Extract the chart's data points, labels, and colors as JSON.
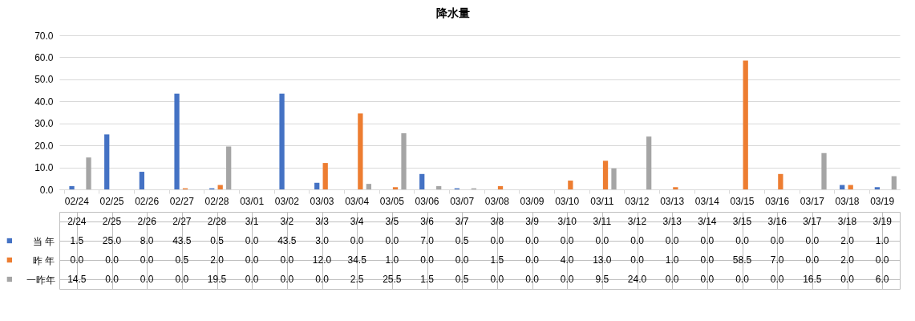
{
  "chart_data": {
    "type": "bar",
    "title": "降水量",
    "categories": [
      "02/24",
      "02/25",
      "02/26",
      "02/27",
      "02/28",
      "03/01",
      "03/02",
      "03/03",
      "03/04",
      "03/05",
      "03/06",
      "03/07",
      "03/08",
      "03/09",
      "03/10",
      "03/11",
      "03/12",
      "03/13",
      "03/14",
      "03/15",
      "03/16",
      "03/17",
      "03/18",
      "03/19"
    ],
    "series": [
      {
        "name": "当 年",
        "color": "#4472c4",
        "values": [
          1.5,
          25.0,
          8.0,
          43.5,
          0.5,
          0.0,
          43.5,
          3.0,
          0.0,
          0.0,
          7.0,
          0.5,
          0.0,
          0.0,
          0.0,
          0.0,
          0.0,
          0.0,
          0.0,
          0.0,
          0.0,
          0.0,
          2.0,
          1.0
        ],
        "value_labels": [
          "1.5",
          "25.0",
          "8.0",
          "43.5",
          "0.5",
          "0.0",
          "43.5",
          "3.0",
          "0.0",
          "0.0",
          "7.0",
          "0.5",
          "0.0",
          "0.0",
          "0.0",
          "0.0",
          "0.0",
          "0.0",
          "0.0",
          "0.0",
          "0.0",
          "0.0",
          "2.0",
          "1.0"
        ]
      },
      {
        "name": "昨 年",
        "color": "#ed7d31",
        "values": [
          0.0,
          0.0,
          0.0,
          0.5,
          2.0,
          0.0,
          0.0,
          12.0,
          34.5,
          1.0,
          0.0,
          0.0,
          1.5,
          0.0,
          4.0,
          13.0,
          0.0,
          1.0,
          0.0,
          58.5,
          7.0,
          0.0,
          2.0,
          0.0
        ],
        "value_labels": [
          "0.0",
          "0.0",
          "0.0",
          "0.5",
          "2.0",
          "0.0",
          "0.0",
          "12.0",
          "34.5",
          "1.0",
          "0.0",
          "0.0",
          "1.5",
          "0.0",
          "4.0",
          "13.0",
          "0.0",
          "1.0",
          "0.0",
          "58.5",
          "7.0",
          "0.0",
          "2.0",
          "0.0"
        ]
      },
      {
        "name": "一昨年",
        "color": "#a5a5a5",
        "values": [
          14.5,
          0.0,
          0.0,
          0.0,
          19.5,
          0.0,
          0.0,
          0.0,
          2.5,
          25.5,
          1.5,
          0.5,
          0.0,
          0.0,
          0.0,
          9.5,
          24.0,
          0.0,
          0.0,
          0.0,
          0.0,
          16.5,
          0.0,
          6.0
        ],
        "value_labels": [
          "14.5",
          "0.0",
          "0.0",
          "0.0",
          "19.5",
          "0.0",
          "0.0",
          "0.0",
          "2.5",
          "25.5",
          "1.5",
          "0.5",
          "0.0",
          "0.0",
          "0.0",
          "9.5",
          "24.0",
          "0.0",
          "0.0",
          "0.0",
          "0.0",
          "16.5",
          "0.0",
          "6.0"
        ]
      }
    ],
    "ylim": [
      0,
      70
    ],
    "yticks": [
      {
        "value": 0,
        "label": "0.0"
      },
      {
        "value": 10,
        "label": "10.0"
      },
      {
        "value": 20,
        "label": "20.0"
      },
      {
        "value": 30,
        "label": "30.0"
      },
      {
        "value": 40,
        "label": "40.0"
      },
      {
        "value": 50,
        "label": "50.0"
      },
      {
        "value": 60,
        "label": "60.0"
      },
      {
        "value": 70,
        "label": "70.0"
      }
    ],
    "grid": "y",
    "legend": "bottom",
    "annotations": [
      "2/24",
      "2/25",
      "2/26",
      "2/27",
      "2/28",
      "3/1",
      "3/2",
      "3/3",
      "3/4",
      "3/5",
      "3/6",
      "3/7",
      "3/8",
      "3/9",
      "3/10",
      "3/11",
      "3/12",
      "3/13",
      "3/14",
      "3/15",
      "3/16",
      "3/17",
      "3/18",
      "3/19"
    ]
  }
}
